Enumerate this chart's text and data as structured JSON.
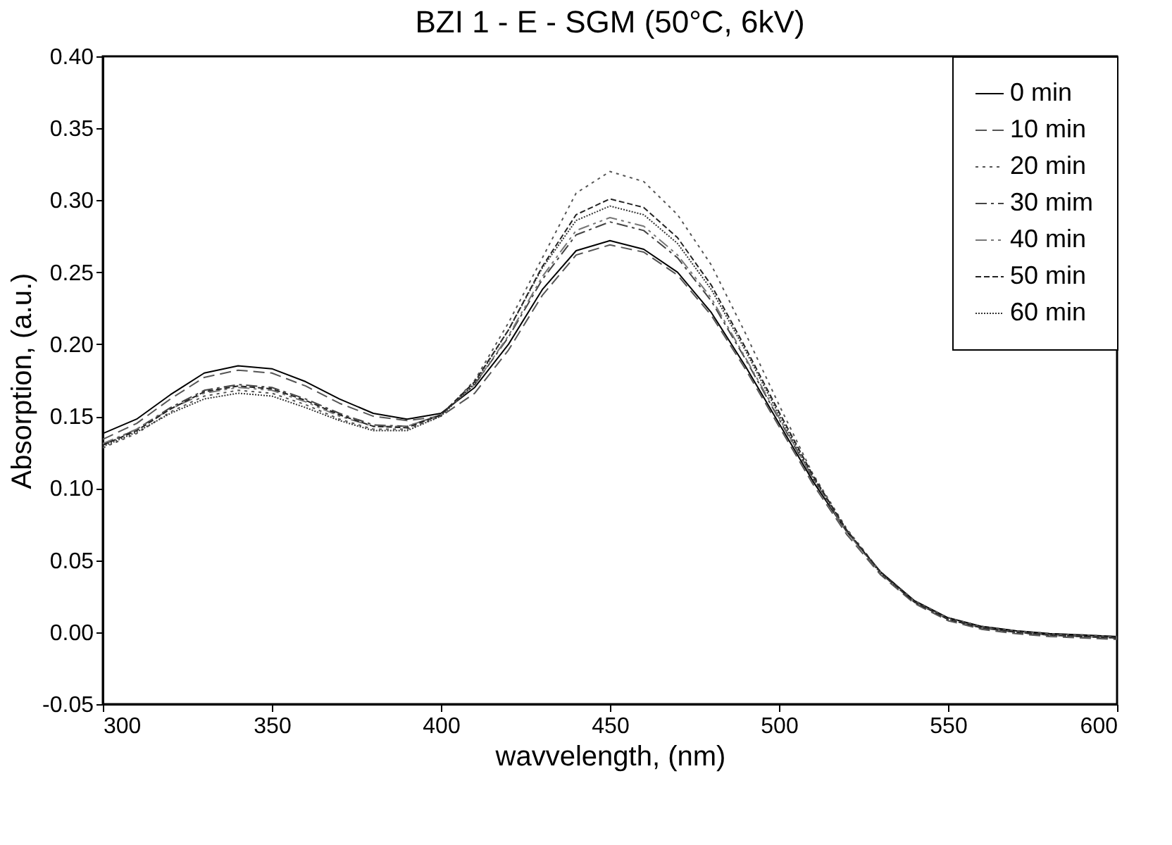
{
  "chart_data": {
    "type": "line",
    "title": "BZI 1 - E - SGM (50°C, 6kV)",
    "xlabel": "wavvelength, (nm)",
    "ylabel": "Absorption, (a.u.)",
    "x": [
      300,
      310,
      320,
      330,
      340,
      350,
      360,
      370,
      380,
      390,
      400,
      410,
      420,
      430,
      440,
      450,
      460,
      470,
      480,
      490,
      500,
      510,
      520,
      530,
      540,
      550,
      560,
      570,
      580,
      590,
      600
    ],
    "series": [
      {
        "name": "0 min",
        "color": "#000000",
        "line_style": "solid",
        "values": [
          0.138,
          0.148,
          0.165,
          0.18,
          0.185,
          0.183,
          0.174,
          0.162,
          0.152,
          0.148,
          0.152,
          0.17,
          0.2,
          0.238,
          0.265,
          0.272,
          0.266,
          0.25,
          0.222,
          0.185,
          0.145,
          0.105,
          0.07,
          0.042,
          0.022,
          0.01,
          0.004,
          0.001,
          -0.001,
          -0.002,
          -0.003
        ]
      },
      {
        "name": "10 min",
        "color": "#555555",
        "line_style": "dashed",
        "values": [
          0.134,
          0.145,
          0.162,
          0.177,
          0.182,
          0.18,
          0.171,
          0.159,
          0.15,
          0.147,
          0.15,
          0.166,
          0.196,
          0.234,
          0.262,
          0.269,
          0.264,
          0.248,
          0.22,
          0.183,
          0.143,
          0.103,
          0.068,
          0.04,
          0.02,
          0.008,
          0.002,
          -0.001,
          -0.003,
          -0.004,
          -0.005
        ]
      },
      {
        "name": "20 min",
        "color": "#555555",
        "line_style": "dotted",
        "values": [
          0.128,
          0.138,
          0.153,
          0.164,
          0.168,
          0.166,
          0.158,
          0.148,
          0.141,
          0.141,
          0.15,
          0.175,
          0.215,
          0.26,
          0.305,
          0.32,
          0.313,
          0.29,
          0.255,
          0.208,
          0.158,
          0.11,
          0.072,
          0.042,
          0.022,
          0.01,
          0.004,
          0.001,
          -0.001,
          -0.002,
          -0.003
        ]
      },
      {
        "name": "30 mim",
        "color": "#444444",
        "line_style": "dashdot",
        "values": [
          0.13,
          0.141,
          0.156,
          0.168,
          0.172,
          0.17,
          0.162,
          0.152,
          0.144,
          0.143,
          0.151,
          0.172,
          0.205,
          0.245,
          0.276,
          0.285,
          0.279,
          0.26,
          0.23,
          0.19,
          0.148,
          0.107,
          0.07,
          0.041,
          0.021,
          0.009,
          0.003,
          0.0,
          -0.002,
          -0.003,
          -0.004
        ]
      },
      {
        "name": "40 min",
        "color": "#777777",
        "line_style": "dashdotdot",
        "values": [
          0.131,
          0.141,
          0.155,
          0.166,
          0.17,
          0.168,
          0.16,
          0.15,
          0.143,
          0.143,
          0.151,
          0.172,
          0.206,
          0.247,
          0.279,
          0.288,
          0.282,
          0.262,
          0.232,
          0.191,
          0.149,
          0.107,
          0.07,
          0.041,
          0.021,
          0.009,
          0.003,
          0.0,
          -0.002,
          -0.003,
          -0.004
        ]
      },
      {
        "name": "50 min",
        "color": "#222222",
        "line_style": "shortdash",
        "values": [
          0.13,
          0.14,
          0.155,
          0.167,
          0.171,
          0.169,
          0.161,
          0.151,
          0.143,
          0.142,
          0.151,
          0.174,
          0.21,
          0.254,
          0.29,
          0.301,
          0.295,
          0.274,
          0.241,
          0.198,
          0.153,
          0.109,
          0.071,
          0.042,
          0.021,
          0.009,
          0.003,
          0.0,
          -0.002,
          -0.003,
          -0.004
        ]
      },
      {
        "name": "60 min",
        "color": "#333333",
        "line_style": "densedot",
        "values": [
          0.129,
          0.139,
          0.152,
          0.162,
          0.166,
          0.164,
          0.156,
          0.147,
          0.14,
          0.14,
          0.15,
          0.173,
          0.21,
          0.253,
          0.286,
          0.296,
          0.29,
          0.27,
          0.238,
          0.196,
          0.151,
          0.108,
          0.071,
          0.041,
          0.021,
          0.009,
          0.003,
          0.0,
          -0.002,
          -0.003,
          -0.004
        ]
      }
    ],
    "xlim": [
      300,
      600
    ],
    "xticks": [
      300,
      350,
      400,
      450,
      500,
      550,
      600
    ],
    "ylim": [
      -0.05,
      0.4
    ],
    "yticks": [
      {
        "value": -0.05,
        "label": "-0.05"
      },
      {
        "value": 0,
        "label": "0.00"
      },
      {
        "value": 0.05,
        "label": "0.05"
      },
      {
        "value": 0.1,
        "label": "0.10"
      },
      {
        "value": 0.15,
        "label": "0.15"
      },
      {
        "value": 0.2,
        "label": "0.20"
      },
      {
        "value": 0.25,
        "label": "0.25"
      },
      {
        "value": 0.3,
        "label": "0.30"
      },
      {
        "value": 0.35,
        "label": "0.35"
      },
      {
        "value": 0.4,
        "label": "0.40"
      }
    ],
    "legend": "top right",
    "grid": false,
    "marker": "none"
  }
}
